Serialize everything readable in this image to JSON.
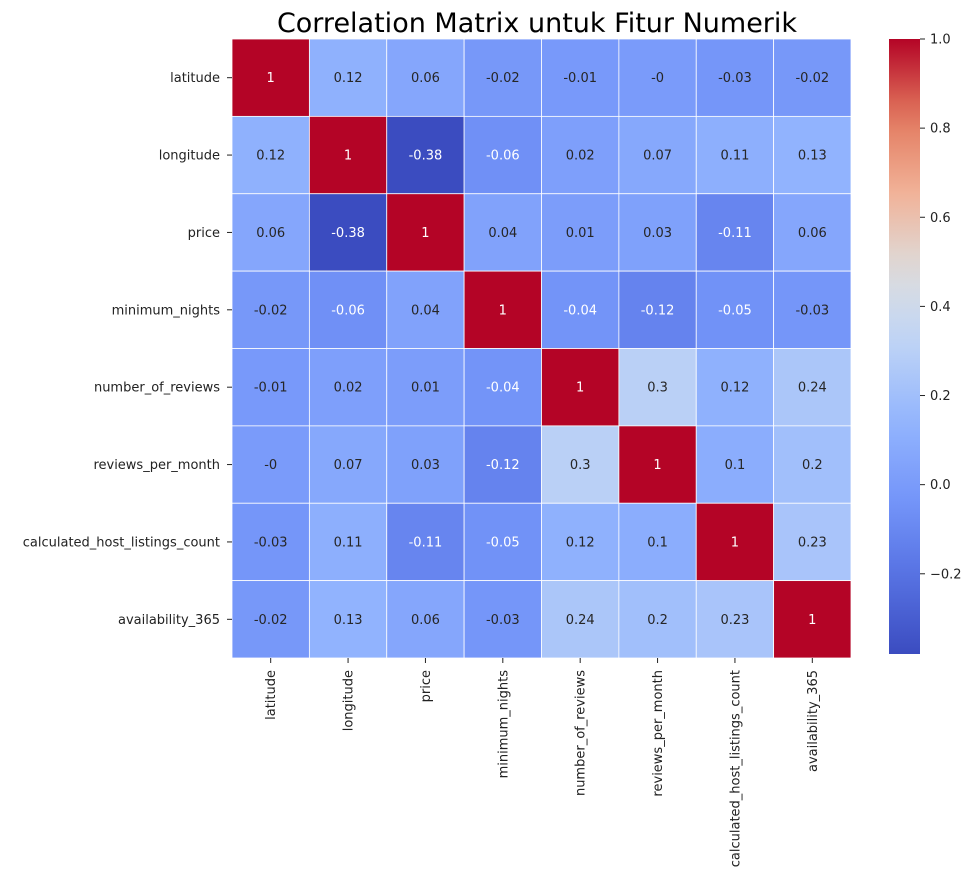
{
  "chart_data": {
    "type": "heatmap",
    "title": "Correlation Matrix untuk Fitur Numerik",
    "categories": [
      "latitude",
      "longitude",
      "price",
      "minimum_nights",
      "number_of_reviews",
      "reviews_per_month",
      "calculated_host_listings_count",
      "availability_365"
    ],
    "values": [
      [
        1,
        0.12,
        0.06,
        -0.02,
        -0.01,
        0,
        -0.03,
        -0.02
      ],
      [
        0.12,
        1,
        -0.38,
        -0.06,
        0.02,
        0.07,
        0.11,
        0.13
      ],
      [
        0.06,
        -0.38,
        1,
        0.04,
        0.01,
        0.03,
        -0.11,
        0.06
      ],
      [
        -0.02,
        -0.06,
        0.04,
        1,
        -0.04,
        -0.12,
        -0.05,
        -0.03
      ],
      [
        -0.01,
        0.02,
        0.01,
        -0.04,
        1,
        0.3,
        0.12,
        0.24
      ],
      [
        0,
        0.07,
        0.03,
        -0.12,
        0.3,
        1,
        0.1,
        0.2
      ],
      [
        -0.03,
        0.11,
        -0.11,
        -0.05,
        0.12,
        0.1,
        1,
        0.23
      ],
      [
        -0.02,
        0.13,
        0.06,
        -0.03,
        0.24,
        0.2,
        0.23,
        1
      ]
    ],
    "value_labels": [
      [
        "1",
        "0.12",
        "0.06",
        "-0.02",
        "-0.01",
        "-0",
        "-0.03",
        "-0.02"
      ],
      [
        "0.12",
        "1",
        "-0.38",
        "-0.06",
        "0.02",
        "0.07",
        "0.11",
        "0.13"
      ],
      [
        "0.06",
        "-0.38",
        "1",
        "0.04",
        "0.01",
        "0.03",
        "-0.11",
        "0.06"
      ],
      [
        "-0.02",
        "-0.06",
        "0.04",
        "1",
        "-0.04",
        "-0.12",
        "-0.05",
        "-0.03"
      ],
      [
        "-0.01",
        "0.02",
        "0.01",
        "-0.04",
        "1",
        "0.3",
        "0.12",
        "0.24"
      ],
      [
        "-0",
        "0.07",
        "0.03",
        "-0.12",
        "0.3",
        "1",
        "0.1",
        "0.2"
      ],
      [
        "-0.03",
        "0.11",
        "-0.11",
        "-0.05",
        "0.12",
        "0.1",
        "1",
        "0.23"
      ],
      [
        "-0.02",
        "0.13",
        "0.06",
        "-0.03",
        "0.24",
        "0.2",
        "0.23",
        "1"
      ]
    ],
    "colormap": "coolwarm",
    "color_range": [
      -0.38,
      1.0
    ],
    "colorbar_ticks": [
      1.0,
      0.8,
      0.6,
      0.4,
      0.2,
      0.0,
      -0.2
    ],
    "colorbar_tick_labels": [
      "1.0",
      "0.8",
      "0.6",
      "0.4",
      "0.2",
      "0.0",
      "−0.2"
    ],
    "annotation_colors": {
      "dark": "#262626",
      "light": "#ffffff"
    },
    "grid_line_color": "#ffffff"
  }
}
